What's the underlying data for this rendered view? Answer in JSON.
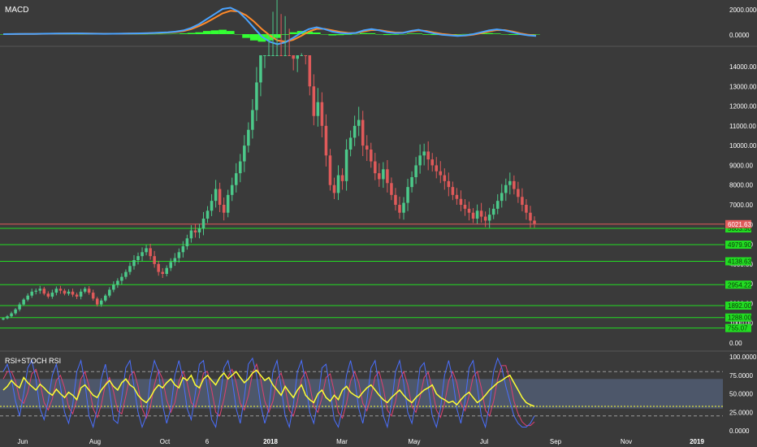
{
  "colors": {
    "background": "#3a3a3a",
    "panel_border": "#555555",
    "up": "#4cc98a",
    "down": "#e05a5a",
    "support": "#22dd22",
    "resistance": "#e05a5a",
    "macd": "#4aa3ff",
    "signal": "#ff8a2a",
    "histogram": "#33ff33",
    "rsi": "#ffff33",
    "stoch_k": "#4a6fff",
    "stoch_d": "#e04070",
    "rsi_band": "#5a6a8a",
    "axis_text": "#ffffff",
    "price_badge": "#e05a5a",
    "level_badge": "#22dd22"
  },
  "macd_panel": {
    "title": "MACD",
    "tick_labels": [
      "2000.0000",
      "0.0000"
    ],
    "series": [
      {
        "name": "macd",
        "values": [
          0,
          5,
          10,
          15,
          20,
          30,
          40,
          45,
          50,
          60,
          55,
          40,
          30,
          25,
          30,
          40,
          50,
          60,
          70,
          90,
          120,
          150,
          200,
          300,
          500,
          800,
          1200,
          1600,
          2000,
          2100,
          1800,
          1200,
          500,
          -200,
          -600,
          -800,
          -650,
          -300,
          100,
          400,
          550,
          400,
          200,
          100,
          50,
          100,
          300,
          400,
          300,
          150,
          80,
          100,
          250,
          350,
          200,
          50,
          -50,
          -100,
          -150,
          -100,
          0,
          150,
          300,
          380,
          300,
          150,
          0,
          -100,
          -150
        ]
      },
      {
        "name": "signal",
        "values": [
          0,
          3,
          7,
          12,
          16,
          25,
          33,
          40,
          45,
          52,
          54,
          48,
          40,
          33,
          31,
          35,
          42,
          50,
          60,
          75,
          100,
          128,
          170,
          240,
          400,
          650,
          950,
          1300,
          1650,
          1850,
          1800,
          1500,
          1000,
          400,
          -100,
          -500,
          -600,
          -450,
          -150,
          200,
          420,
          420,
          300,
          180,
          100,
          90,
          220,
          330,
          320,
          220,
          130,
          110,
          200,
          300,
          250,
          120,
          20,
          -50,
          -110,
          -110,
          -40,
          80,
          220,
          330,
          320,
          210,
          60,
          -50,
          -120
        ]
      },
      {
        "name": "histogram",
        "values": [
          0,
          2,
          3,
          3,
          4,
          5,
          7,
          5,
          5,
          8,
          1,
          -8,
          -10,
          -8,
          -1,
          5,
          8,
          10,
          10,
          15,
          20,
          22,
          30,
          60,
          100,
          150,
          250,
          300,
          350,
          250,
          0,
          -300,
          -500,
          -600,
          -500,
          -300,
          -50,
          150,
          250,
          200,
          130,
          -20,
          -100,
          -80,
          -50,
          10,
          80,
          70,
          -20,
          -70,
          -50,
          -10,
          50,
          50,
          -50,
          -70,
          -70,
          -50,
          -40,
          10,
          40,
          70,
          80,
          50,
          -20,
          -60,
          -60,
          -50,
          -30
        ]
      }
    ]
  },
  "chart_data": {
    "type": "candlestick",
    "price_tick_labels": [
      "14000.00",
      "13000.00",
      "12000.00",
      "11000.00",
      "10000.00",
      "9000.00",
      "8000.00",
      "7000.00",
      "6000.00",
      "5000.00",
      "4000.00",
      "3000.00",
      "2000.00",
      "1000.00",
      "0.00"
    ],
    "time_tick_labels": [
      "Jun",
      "Aug",
      "Oct",
      "6",
      "2018",
      "Mar",
      "May",
      "Jul",
      "Sep",
      "Nov",
      "2019"
    ],
    "current_price": "6021.63",
    "support_levels": [
      {
        "label": "5803.50",
        "value": 5803.5
      },
      {
        "label": "4979.90",
        "value": 4979.9
      },
      {
        "label": "4138.63",
        "value": 4138.63
      },
      {
        "label": "2954.22",
        "value": 2954.22
      },
      {
        "label": "1892.00",
        "value": 1892.0
      },
      {
        "label": "1288.00",
        "value": 1288.0
      },
      {
        "label": "755.07",
        "value": 755.07
      }
    ],
    "closes": [
      1250,
      1350,
      1500,
      1700,
      1950,
      2200,
      2400,
      2600,
      2650,
      2750,
      2500,
      2350,
      2550,
      2750,
      2650,
      2500,
      2600,
      2450,
      2350,
      2600,
      2750,
      2550,
      2250,
      1950,
      2150,
      2400,
      2700,
      2950,
      3150,
      3350,
      3600,
      3900,
      4200,
      4400,
      4600,
      4800,
      4400,
      4000,
      3600,
      3500,
      3800,
      4100,
      4300,
      4600,
      4900,
      5300,
      5700,
      5600,
      5800,
      6300,
      6700,
      7200,
      7800,
      7000,
      6600,
      7500,
      8000,
      8600,
      9200,
      10000,
      10800,
      11800,
      13200,
      14800,
      16200,
      17500,
      18800,
      19500,
      17600,
      18800,
      16500,
      14400,
      15500,
      17300,
      15000,
      13000,
      11500,
      12200,
      11000,
      9500,
      8000,
      7600,
      8500,
      8200,
      9800,
      10400,
      11000,
      11300,
      10000,
      9800,
      9200,
      8600,
      8300,
      8800,
      8100,
      7500,
      7000,
      6600,
      7100,
      7900,
      8400,
      9000,
      9500,
      9700,
      9300,
      9000,
      8700,
      8500,
      8200,
      7900,
      7500,
      7300,
      7000,
      6800,
      6600,
      6300,
      6700,
      6400,
      6200,
      6500,
      6800,
      7200,
      7600,
      8000,
      8200,
      7800,
      7400,
      7000,
      6600,
      6200,
      6050
    ]
  },
  "rsi_panel": {
    "title": "RSI+STOCH RSI",
    "tick_labels": [
      "100.0000",
      "75.0000",
      "50.0000",
      "25.0000",
      "0.0000"
    ],
    "band_upper": 70,
    "band_lower": 30,
    "current_rsi": 33,
    "rsi": [
      55,
      60,
      68,
      62,
      58,
      72,
      65,
      60,
      55,
      63,
      58,
      52,
      48,
      56,
      50,
      45,
      52,
      48,
      42,
      58,
      62,
      55,
      48,
      45,
      55,
      62,
      68,
      60,
      55,
      65,
      70,
      62,
      58,
      48,
      42,
      38,
      45,
      55,
      62,
      58,
      65,
      70,
      62,
      58,
      72,
      68,
      75,
      62,
      58,
      70,
      75,
      68,
      62,
      72,
      78,
      70,
      75,
      80,
      72,
      65,
      70,
      78,
      82,
      75,
      68,
      72,
      62,
      55,
      48,
      60,
      52,
      45,
      55,
      62,
      48,
      42,
      38,
      50,
      55,
      45,
      40,
      48,
      42,
      55,
      60,
      52,
      48,
      45,
      52,
      58,
      62,
      55,
      48,
      42,
      38,
      45,
      50,
      55,
      48,
      42,
      38,
      45,
      50,
      55,
      58,
      62,
      50,
      45,
      42,
      38,
      40,
      35,
      42,
      48,
      52,
      45,
      38,
      42,
      48,
      55,
      60,
      65,
      68,
      72,
      75,
      65,
      55,
      45,
      38,
      35,
      33
    ],
    "stoch_k": [
      80,
      90,
      70,
      40,
      20,
      50,
      85,
      95,
      70,
      30,
      15,
      40,
      75,
      90,
      60,
      25,
      10,
      35,
      80,
      95,
      65,
      20,
      5,
      30,
      70,
      90,
      55,
      15,
      10,
      45,
      85,
      95,
      60,
      25,
      5,
      20,
      70,
      95,
      80,
      35,
      10,
      30,
      75,
      95,
      70,
      30,
      15,
      50,
      90,
      95,
      55,
      15,
      5,
      40,
      85,
      95,
      70,
      30,
      10,
      45,
      90,
      98,
      75,
      35,
      10,
      30,
      80,
      95,
      60,
      20,
      5,
      35,
      80,
      95,
      65,
      25,
      10,
      40,
      85,
      90,
      55,
      15,
      5,
      30,
      75,
      95,
      70,
      30,
      10,
      40,
      85,
      95,
      60,
      20,
      5,
      35,
      80,
      95,
      65,
      25,
      10,
      40,
      85,
      92,
      60,
      20,
      5,
      30,
      75,
      95,
      70,
      30,
      10,
      40,
      85,
      95,
      60,
      20,
      5,
      35,
      80,
      98,
      85,
      60,
      40,
      20,
      10,
      5,
      5,
      10,
      20
    ],
    "stoch_d": [
      70,
      80,
      80,
      67,
      43,
      37,
      52,
      77,
      83,
      65,
      38,
      28,
      43,
      68,
      75,
      58,
      32,
      23,
      42,
      70,
      80,
      60,
      30,
      18,
      35,
      63,
      72,
      53,
      27,
      23,
      47,
      75,
      80,
      60,
      30,
      17,
      32,
      62,
      82,
      70,
      42,
      25,
      38,
      67,
      80,
      65,
      38,
      32,
      52,
      78,
      80,
      55,
      25,
      20,
      43,
      73,
      83,
      65,
      37,
      28,
      48,
      78,
      90,
      70,
      40,
      25,
      40,
      70,
      78,
      58,
      28,
      20,
      40,
      70,
      80,
      62,
      33,
      25,
      45,
      72,
      77,
      53,
      25,
      17,
      37,
      67,
      80,
      65,
      37,
      27,
      47,
      73,
      80,
      58,
      28,
      20,
      40,
      70,
      80,
      62,
      33,
      25,
      45,
      72,
      79,
      57,
      28,
      18,
      37,
      67,
      80,
      65,
      37,
      27,
      47,
      73,
      80,
      58,
      28,
      20,
      40,
      70,
      88,
      88,
      68,
      40,
      23,
      12,
      7,
      7,
      12
    ]
  }
}
